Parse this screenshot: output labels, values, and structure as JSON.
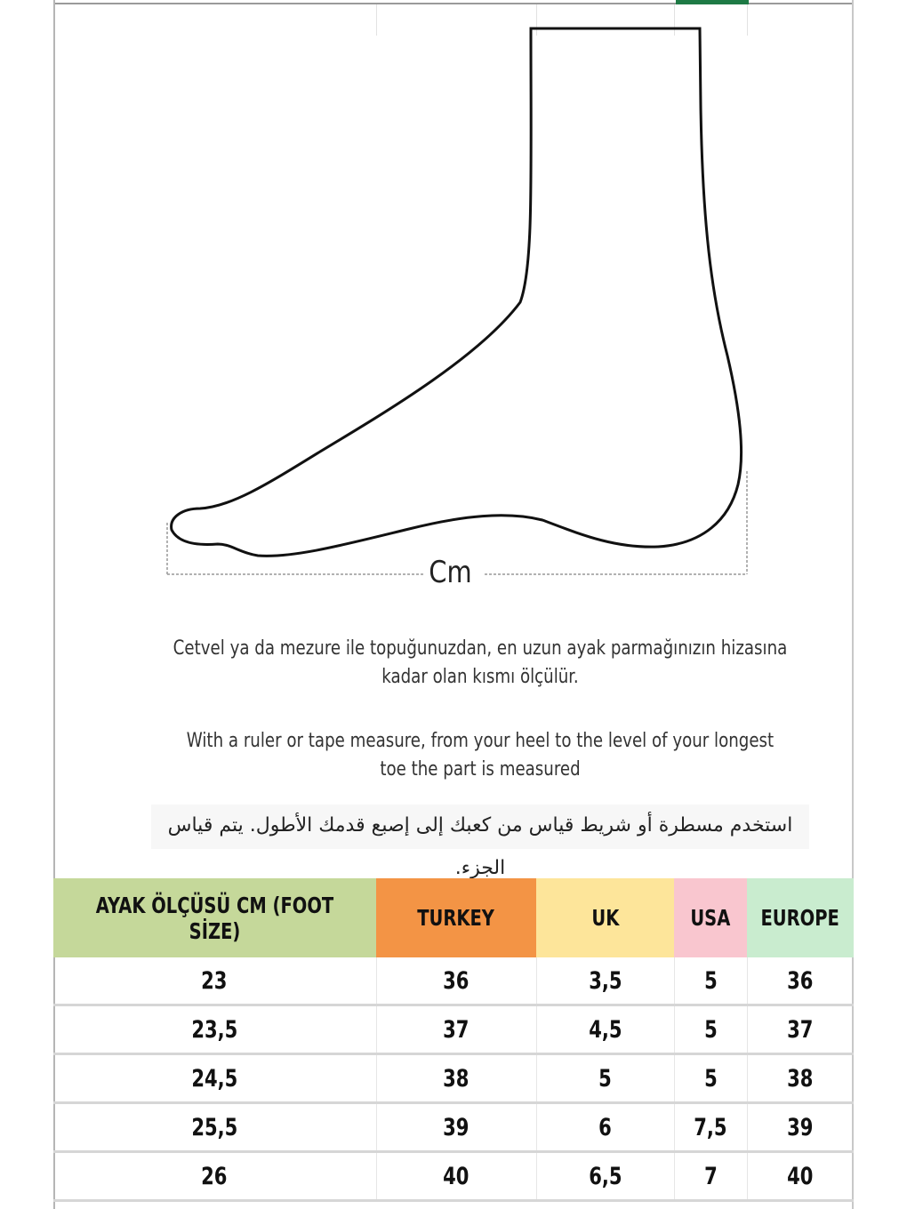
{
  "diagram": {
    "measure_label": "Cm"
  },
  "instructions": {
    "turkish": "Cetvel ya da mezure ile topuğunuzdan, en uzun ayak parmağınızın hizasına kadar olan kısmı ölçülür.",
    "english": "With a ruler or tape measure, from your heel to the level of your longest toe the part is measured",
    "arabic": "استخدم مسطرة أو شريط قياس من كعبك إلى إصبع قدمك الأطول.  يتم قياس الجزء."
  },
  "table": {
    "headers": [
      {
        "label": "AYAK ÖLÇÜSÜ CM (FOOT SİZE)",
        "color": "#c5d89a"
      },
      {
        "label": "TURKEY",
        "color": "#f39445"
      },
      {
        "label": "UK",
        "color": "#fde59a"
      },
      {
        "label": "USA",
        "color": "#f9c6cf"
      },
      {
        "label": "EUROPE",
        "color": "#c9eccf"
      }
    ],
    "rows": [
      [
        "23",
        "36",
        "3,5",
        "5",
        "36"
      ],
      [
        "23,5",
        "37",
        "4,5",
        "5",
        "37"
      ],
      [
        "24,5",
        "38",
        "5",
        "5",
        "38"
      ],
      [
        "25,5",
        "39",
        "6",
        "7,5",
        "39"
      ],
      [
        "26",
        "40",
        "6,5",
        "7",
        "40"
      ]
    ]
  }
}
